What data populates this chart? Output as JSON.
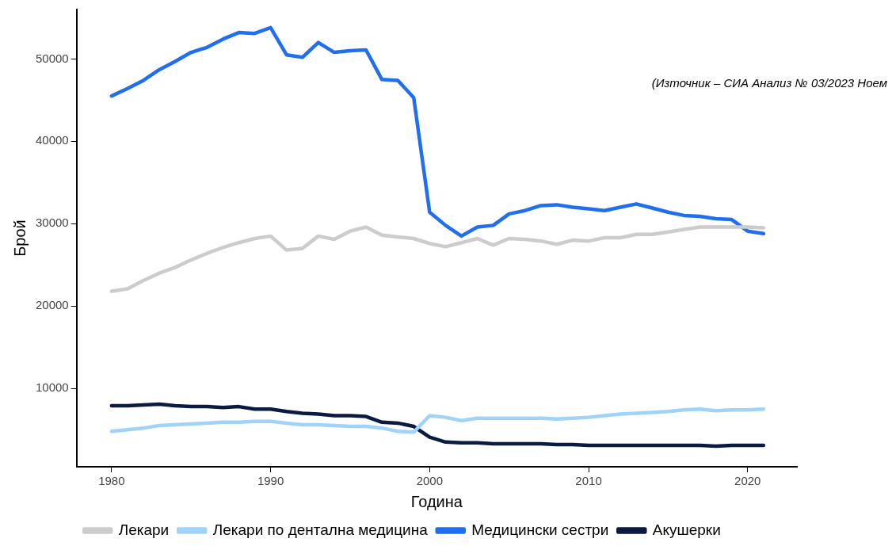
{
  "chart_data": {
    "type": "line",
    "xlabel": "Година",
    "ylabel": "Брой",
    "annotations": [
      "(Източник – СИА Анализ № 03/2023 Ноем"
    ],
    "x": [
      1980,
      1981,
      1982,
      1983,
      1984,
      1985,
      1986,
      1987,
      1988,
      1989,
      1990,
      1991,
      1992,
      1993,
      1994,
      1995,
      1996,
      1997,
      1998,
      1999,
      2000,
      2001,
      2002,
      2003,
      2004,
      2005,
      2006,
      2007,
      2008,
      2009,
      2010,
      2011,
      2012,
      2013,
      2014,
      2015,
      2016,
      2017,
      2018,
      2019,
      2020,
      2021
    ],
    "xlim": [
      1977.8,
      2023.1
    ],
    "xticks": [
      1980,
      1990,
      2000,
      2010,
      2020
    ],
    "ylim": [
      500,
      56000
    ],
    "yticks": [
      10000,
      20000,
      30000,
      40000,
      50000
    ],
    "grid": false,
    "legend": "bottom",
    "marker": "none",
    "line_style": "solid",
    "series": [
      {
        "name": "Лекари",
        "color": "#cccccc",
        "values": [
          21800,
          22100,
          23100,
          24000,
          24700,
          25600,
          26400,
          27100,
          27700,
          28200,
          28500,
          26800,
          27000,
          28500,
          28100,
          29100,
          29600,
          28600,
          28400,
          28200,
          27600,
          27200,
          27700,
          28200,
          27400,
          28200,
          28100,
          27900,
          27500,
          28000,
          27900,
          28300,
          28300,
          28700,
          28700,
          29000,
          29300,
          29600,
          29600,
          29600,
          29600,
          29500
        ]
      },
      {
        "name": "Лекари по дентална медицина",
        "color": "#9fd4f8",
        "values": [
          4800,
          5000,
          5200,
          5500,
          5600,
          5700,
          5800,
          5900,
          5900,
          6000,
          6000,
          5800,
          5600,
          5600,
          5500,
          5400,
          5400,
          5200,
          4800,
          4700,
          6700,
          6500,
          6100,
          6400,
          6400,
          6400,
          6400,
          6400,
          6300,
          6400,
          6500,
          6700,
          6900,
          7000,
          7100,
          7200,
          7400,
          7500,
          7300,
          7400,
          7400,
          7500
        ]
      },
      {
        "name": "Медицински сестри",
        "color": "#1f6ff0",
        "values": [
          45500,
          46400,
          47400,
          48700,
          49700,
          50800,
          51400,
          52400,
          53200,
          53100,
          53800,
          50500,
          50200,
          52000,
          50800,
          51000,
          51100,
          47500,
          47400,
          45300,
          31400,
          29800,
          28500,
          29600,
          29800,
          31200,
          31600,
          32200,
          32300,
          32000,
          31800,
          31600,
          32000,
          32400,
          31900,
          31400,
          31000,
          30900,
          30600,
          30500,
          29100,
          28800
        ]
      },
      {
        "name": "Акушерки",
        "color": "#0b1a42",
        "values": [
          7900,
          7900,
          8000,
          8100,
          7900,
          7800,
          7800,
          7700,
          7800,
          7500,
          7500,
          7200,
          7000,
          6900,
          6700,
          6700,
          6600,
          5900,
          5800,
          5400,
          4100,
          3500,
          3400,
          3400,
          3300,
          3300,
          3300,
          3300,
          3200,
          3200,
          3100,
          3100,
          3100,
          3100,
          3100,
          3100,
          3100,
          3100,
          3000,
          3100,
          3100,
          3100
        ]
      }
    ]
  }
}
